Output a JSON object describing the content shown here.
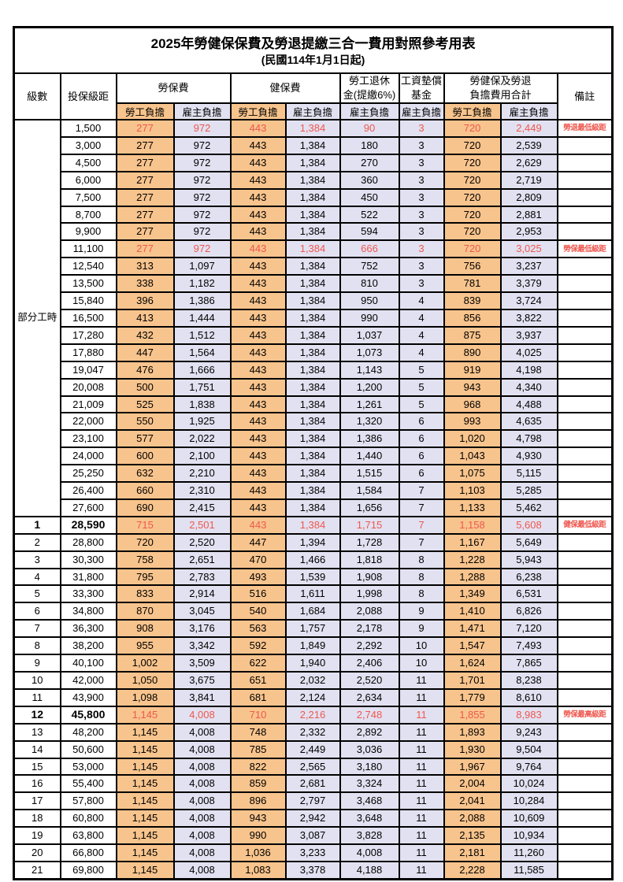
{
  "title": "2025年勞健保保費及勞退提繳三合一費用對照參考用表",
  "subtitle": "(民國114年1月1日起)",
  "header": {
    "level": "級數",
    "bracket": "投保級距",
    "labor": "勞保費",
    "health": "健保費",
    "pension": "勞工退休\n金(提繳6%)",
    "wage_fund": "工資墊償\n基金",
    "total": "勞健保及勞退\n負擔費用合計",
    "note": "備註",
    "self_label": "勞工負擔",
    "emp_label": "雇主負擔"
  },
  "colors": {
    "employee_col_bg": "#F8C48D",
    "employer_col_bg": "#E2E1F1",
    "highlight_text": "#EE584F",
    "border": "#000000"
  },
  "table": {
    "group": {
      "label": "部分工時",
      "span": 23
    },
    "rows": [
      {
        "level": "",
        "bracket": "1,500",
        "labor_self": "277",
        "labor_emp": "972",
        "health_self": "443",
        "health_emp": "1,384",
        "pension_emp": "90",
        "wage_fund": "3",
        "total_self": "720",
        "total_emp": "2,449",
        "note": "勞退最低級距",
        "highlight": true,
        "bold": false
      },
      {
        "level": "",
        "bracket": "3,000",
        "labor_self": "277",
        "labor_emp": "972",
        "health_self": "443",
        "health_emp": "1,384",
        "pension_emp": "180",
        "wage_fund": "3",
        "total_self": "720",
        "total_emp": "2,539",
        "note": "",
        "highlight": false,
        "bold": false
      },
      {
        "level": "",
        "bracket": "4,500",
        "labor_self": "277",
        "labor_emp": "972",
        "health_self": "443",
        "health_emp": "1,384",
        "pension_emp": "270",
        "wage_fund": "3",
        "total_self": "720",
        "total_emp": "2,629",
        "note": "",
        "highlight": false,
        "bold": false
      },
      {
        "level": "",
        "bracket": "6,000",
        "labor_self": "277",
        "labor_emp": "972",
        "health_self": "443",
        "health_emp": "1,384",
        "pension_emp": "360",
        "wage_fund": "3",
        "total_self": "720",
        "total_emp": "2,719",
        "note": "",
        "highlight": false,
        "bold": false
      },
      {
        "level": "",
        "bracket": "7,500",
        "labor_self": "277",
        "labor_emp": "972",
        "health_self": "443",
        "health_emp": "1,384",
        "pension_emp": "450",
        "wage_fund": "3",
        "total_self": "720",
        "total_emp": "2,809",
        "note": "",
        "highlight": false,
        "bold": false
      },
      {
        "level": "",
        "bracket": "8,700",
        "labor_self": "277",
        "labor_emp": "972",
        "health_self": "443",
        "health_emp": "1,384",
        "pension_emp": "522",
        "wage_fund": "3",
        "total_self": "720",
        "total_emp": "2,881",
        "note": "",
        "highlight": false,
        "bold": false
      },
      {
        "level": "",
        "bracket": "9,900",
        "labor_self": "277",
        "labor_emp": "972",
        "health_self": "443",
        "health_emp": "1,384",
        "pension_emp": "594",
        "wage_fund": "3",
        "total_self": "720",
        "total_emp": "2,953",
        "note": "",
        "highlight": false,
        "bold": false
      },
      {
        "level": "",
        "bracket": "11,100",
        "labor_self": "277",
        "labor_emp": "972",
        "health_self": "443",
        "health_emp": "1,384",
        "pension_emp": "666",
        "wage_fund": "3",
        "total_self": "720",
        "total_emp": "3,025",
        "note": "勞保最低級距",
        "highlight": true,
        "bold": false
      },
      {
        "level": "",
        "bracket": "12,540",
        "labor_self": "313",
        "labor_emp": "1,097",
        "health_self": "443",
        "health_emp": "1,384",
        "pension_emp": "752",
        "wage_fund": "3",
        "total_self": "756",
        "total_emp": "3,237",
        "note": "",
        "highlight": false,
        "bold": false
      },
      {
        "level": "",
        "bracket": "13,500",
        "labor_self": "338",
        "labor_emp": "1,182",
        "health_self": "443",
        "health_emp": "1,384",
        "pension_emp": "810",
        "wage_fund": "3",
        "total_self": "781",
        "total_emp": "3,379",
        "note": "",
        "highlight": false,
        "bold": false
      },
      {
        "level": "",
        "bracket": "15,840",
        "labor_self": "396",
        "labor_emp": "1,386",
        "health_self": "443",
        "health_emp": "1,384",
        "pension_emp": "950",
        "wage_fund": "4",
        "total_self": "839",
        "total_emp": "3,724",
        "note": "",
        "highlight": false,
        "bold": false
      },
      {
        "level": "",
        "bracket": "16,500",
        "labor_self": "413",
        "labor_emp": "1,444",
        "health_self": "443",
        "health_emp": "1,384",
        "pension_emp": "990",
        "wage_fund": "4",
        "total_self": "856",
        "total_emp": "3,822",
        "note": "",
        "highlight": false,
        "bold": false
      },
      {
        "level": "",
        "bracket": "17,280",
        "labor_self": "432",
        "labor_emp": "1,512",
        "health_self": "443",
        "health_emp": "1,384",
        "pension_emp": "1,037",
        "wage_fund": "4",
        "total_self": "875",
        "total_emp": "3,937",
        "note": "",
        "highlight": false,
        "bold": false
      },
      {
        "level": "",
        "bracket": "17,880",
        "labor_self": "447",
        "labor_emp": "1,564",
        "health_self": "443",
        "health_emp": "1,384",
        "pension_emp": "1,073",
        "wage_fund": "4",
        "total_self": "890",
        "total_emp": "4,025",
        "note": "",
        "highlight": false,
        "bold": false
      },
      {
        "level": "",
        "bracket": "19,047",
        "labor_self": "476",
        "labor_emp": "1,666",
        "health_self": "443",
        "health_emp": "1,384",
        "pension_emp": "1,143",
        "wage_fund": "5",
        "total_self": "919",
        "total_emp": "4,198",
        "note": "",
        "highlight": false,
        "bold": false
      },
      {
        "level": "",
        "bracket": "20,008",
        "labor_self": "500",
        "labor_emp": "1,751",
        "health_self": "443",
        "health_emp": "1,384",
        "pension_emp": "1,200",
        "wage_fund": "5",
        "total_self": "943",
        "total_emp": "4,340",
        "note": "",
        "highlight": false,
        "bold": false
      },
      {
        "level": "",
        "bracket": "21,009",
        "labor_self": "525",
        "labor_emp": "1,838",
        "health_self": "443",
        "health_emp": "1,384",
        "pension_emp": "1,261",
        "wage_fund": "5",
        "total_self": "968",
        "total_emp": "4,488",
        "note": "",
        "highlight": false,
        "bold": false
      },
      {
        "level": "",
        "bracket": "22,000",
        "labor_self": "550",
        "labor_emp": "1,925",
        "health_self": "443",
        "health_emp": "1,384",
        "pension_emp": "1,320",
        "wage_fund": "6",
        "total_self": "993",
        "total_emp": "4,635",
        "note": "",
        "highlight": false,
        "bold": false
      },
      {
        "level": "",
        "bracket": "23,100",
        "labor_self": "577",
        "labor_emp": "2,022",
        "health_self": "443",
        "health_emp": "1,384",
        "pension_emp": "1,386",
        "wage_fund": "6",
        "total_self": "1,020",
        "total_emp": "4,798",
        "note": "",
        "highlight": false,
        "bold": false
      },
      {
        "level": "",
        "bracket": "24,000",
        "labor_self": "600",
        "labor_emp": "2,100",
        "health_self": "443",
        "health_emp": "1,384",
        "pension_emp": "1,440",
        "wage_fund": "6",
        "total_self": "1,043",
        "total_emp": "4,930",
        "note": "",
        "highlight": false,
        "bold": false
      },
      {
        "level": "",
        "bracket": "25,250",
        "labor_self": "632",
        "labor_emp": "2,210",
        "health_self": "443",
        "health_emp": "1,384",
        "pension_emp": "1,515",
        "wage_fund": "6",
        "total_self": "1,075",
        "total_emp": "5,115",
        "note": "",
        "highlight": false,
        "bold": false
      },
      {
        "level": "",
        "bracket": "26,400",
        "labor_self": "660",
        "labor_emp": "2,310",
        "health_self": "443",
        "health_emp": "1,384",
        "pension_emp": "1,584",
        "wage_fund": "7",
        "total_self": "1,103",
        "total_emp": "5,285",
        "note": "",
        "highlight": false,
        "bold": false
      },
      {
        "level": "",
        "bracket": "27,600",
        "labor_self": "690",
        "labor_emp": "2,415",
        "health_self": "443",
        "health_emp": "1,384",
        "pension_emp": "1,656",
        "wage_fund": "7",
        "total_self": "1,133",
        "total_emp": "5,462",
        "note": "",
        "highlight": false,
        "bold": false
      },
      {
        "level": "1",
        "bracket": "28,590",
        "labor_self": "715",
        "labor_emp": "2,501",
        "health_self": "443",
        "health_emp": "1,384",
        "pension_emp": "1,715",
        "wage_fund": "7",
        "total_self": "1,158",
        "total_emp": "5,608",
        "note": "健保最低級距",
        "highlight": true,
        "bold": true
      },
      {
        "level": "2",
        "bracket": "28,800",
        "labor_self": "720",
        "labor_emp": "2,520",
        "health_self": "447",
        "health_emp": "1,394",
        "pension_emp": "1,728",
        "wage_fund": "7",
        "total_self": "1,167",
        "total_emp": "5,649",
        "note": "",
        "highlight": false,
        "bold": false
      },
      {
        "level": "3",
        "bracket": "30,300",
        "labor_self": "758",
        "labor_emp": "2,651",
        "health_self": "470",
        "health_emp": "1,466",
        "pension_emp": "1,818",
        "wage_fund": "8",
        "total_self": "1,228",
        "total_emp": "5,943",
        "note": "",
        "highlight": false,
        "bold": false
      },
      {
        "level": "4",
        "bracket": "31,800",
        "labor_self": "795",
        "labor_emp": "2,783",
        "health_self": "493",
        "health_emp": "1,539",
        "pension_emp": "1,908",
        "wage_fund": "8",
        "total_self": "1,288",
        "total_emp": "6,238",
        "note": "",
        "highlight": false,
        "bold": false
      },
      {
        "level": "5",
        "bracket": "33,300",
        "labor_self": "833",
        "labor_emp": "2,914",
        "health_self": "516",
        "health_emp": "1,611",
        "pension_emp": "1,998",
        "wage_fund": "8",
        "total_self": "1,349",
        "total_emp": "6,531",
        "note": "",
        "highlight": false,
        "bold": false
      },
      {
        "level": "6",
        "bracket": "34,800",
        "labor_self": "870",
        "labor_emp": "3,045",
        "health_self": "540",
        "health_emp": "1,684",
        "pension_emp": "2,088",
        "wage_fund": "9",
        "total_self": "1,410",
        "total_emp": "6,826",
        "note": "",
        "highlight": false,
        "bold": false
      },
      {
        "level": "7",
        "bracket": "36,300",
        "labor_self": "908",
        "labor_emp": "3,176",
        "health_self": "563",
        "health_emp": "1,757",
        "pension_emp": "2,178",
        "wage_fund": "9",
        "total_self": "1,471",
        "total_emp": "7,120",
        "note": "",
        "highlight": false,
        "bold": false
      },
      {
        "level": "8",
        "bracket": "38,200",
        "labor_self": "955",
        "labor_emp": "3,342",
        "health_self": "592",
        "health_emp": "1,849",
        "pension_emp": "2,292",
        "wage_fund": "10",
        "total_self": "1,547",
        "total_emp": "7,493",
        "note": "",
        "highlight": false,
        "bold": false
      },
      {
        "level": "9",
        "bracket": "40,100",
        "labor_self": "1,002",
        "labor_emp": "3,509",
        "health_self": "622",
        "health_emp": "1,940",
        "pension_emp": "2,406",
        "wage_fund": "10",
        "total_self": "1,624",
        "total_emp": "7,865",
        "note": "",
        "highlight": false,
        "bold": false
      },
      {
        "level": "10",
        "bracket": "42,000",
        "labor_self": "1,050",
        "labor_emp": "3,675",
        "health_self": "651",
        "health_emp": "2,032",
        "pension_emp": "2,520",
        "wage_fund": "11",
        "total_self": "1,701",
        "total_emp": "8,238",
        "note": "",
        "highlight": false,
        "bold": false
      },
      {
        "level": "11",
        "bracket": "43,900",
        "labor_self": "1,098",
        "labor_emp": "3,841",
        "health_self": "681",
        "health_emp": "2,124",
        "pension_emp": "2,634",
        "wage_fund": "11",
        "total_self": "1,779",
        "total_emp": "8,610",
        "note": "",
        "highlight": false,
        "bold": false
      },
      {
        "level": "12",
        "bracket": "45,800",
        "labor_self": "1,145",
        "labor_emp": "4,008",
        "health_self": "710",
        "health_emp": "2,216",
        "pension_emp": "2,748",
        "wage_fund": "11",
        "total_self": "1,855",
        "total_emp": "8,983",
        "note": "勞保最高級距",
        "highlight": true,
        "bold": true
      },
      {
        "level": "13",
        "bracket": "48,200",
        "labor_self": "1,145",
        "labor_emp": "4,008",
        "health_self": "748",
        "health_emp": "2,332",
        "pension_emp": "2,892",
        "wage_fund": "11",
        "total_self": "1,893",
        "total_emp": "9,243",
        "note": "",
        "highlight": false,
        "bold": false
      },
      {
        "level": "14",
        "bracket": "50,600",
        "labor_self": "1,145",
        "labor_emp": "4,008",
        "health_self": "785",
        "health_emp": "2,449",
        "pension_emp": "3,036",
        "wage_fund": "11",
        "total_self": "1,930",
        "total_emp": "9,504",
        "note": "",
        "highlight": false,
        "bold": false
      },
      {
        "level": "15",
        "bracket": "53,000",
        "labor_self": "1,145",
        "labor_emp": "4,008",
        "health_self": "822",
        "health_emp": "2,565",
        "pension_emp": "3,180",
        "wage_fund": "11",
        "total_self": "1,967",
        "total_emp": "9,764",
        "note": "",
        "highlight": false,
        "bold": false
      },
      {
        "level": "16",
        "bracket": "55,400",
        "labor_self": "1,145",
        "labor_emp": "4,008",
        "health_self": "859",
        "health_emp": "2,681",
        "pension_emp": "3,324",
        "wage_fund": "11",
        "total_self": "2,004",
        "total_emp": "10,024",
        "note": "",
        "highlight": false,
        "bold": false
      },
      {
        "level": "17",
        "bracket": "57,800",
        "labor_self": "1,145",
        "labor_emp": "4,008",
        "health_self": "896",
        "health_emp": "2,797",
        "pension_emp": "3,468",
        "wage_fund": "11",
        "total_self": "2,041",
        "total_emp": "10,284",
        "note": "",
        "highlight": false,
        "bold": false
      },
      {
        "level": "18",
        "bracket": "60,800",
        "labor_self": "1,145",
        "labor_emp": "4,008",
        "health_self": "943",
        "health_emp": "2,942",
        "pension_emp": "3,648",
        "wage_fund": "11",
        "total_self": "2,088",
        "total_emp": "10,609",
        "note": "",
        "highlight": false,
        "bold": false
      },
      {
        "level": "19",
        "bracket": "63,800",
        "labor_self": "1,145",
        "labor_emp": "4,008",
        "health_self": "990",
        "health_emp": "3,087",
        "pension_emp": "3,828",
        "wage_fund": "11",
        "total_self": "2,135",
        "total_emp": "10,934",
        "note": "",
        "highlight": false,
        "bold": false
      },
      {
        "level": "20",
        "bracket": "66,800",
        "labor_self": "1,145",
        "labor_emp": "4,008",
        "health_self": "1,036",
        "health_emp": "3,233",
        "pension_emp": "4,008",
        "wage_fund": "11",
        "total_self": "2,181",
        "total_emp": "11,260",
        "note": "",
        "highlight": false,
        "bold": false
      },
      {
        "level": "21",
        "bracket": "69,800",
        "labor_self": "1,145",
        "labor_emp": "4,008",
        "health_self": "1,083",
        "health_emp": "3,378",
        "pension_emp": "4,188",
        "wage_fund": "11",
        "total_self": "2,228",
        "total_emp": "11,585",
        "note": "",
        "highlight": false,
        "bold": false
      }
    ]
  }
}
